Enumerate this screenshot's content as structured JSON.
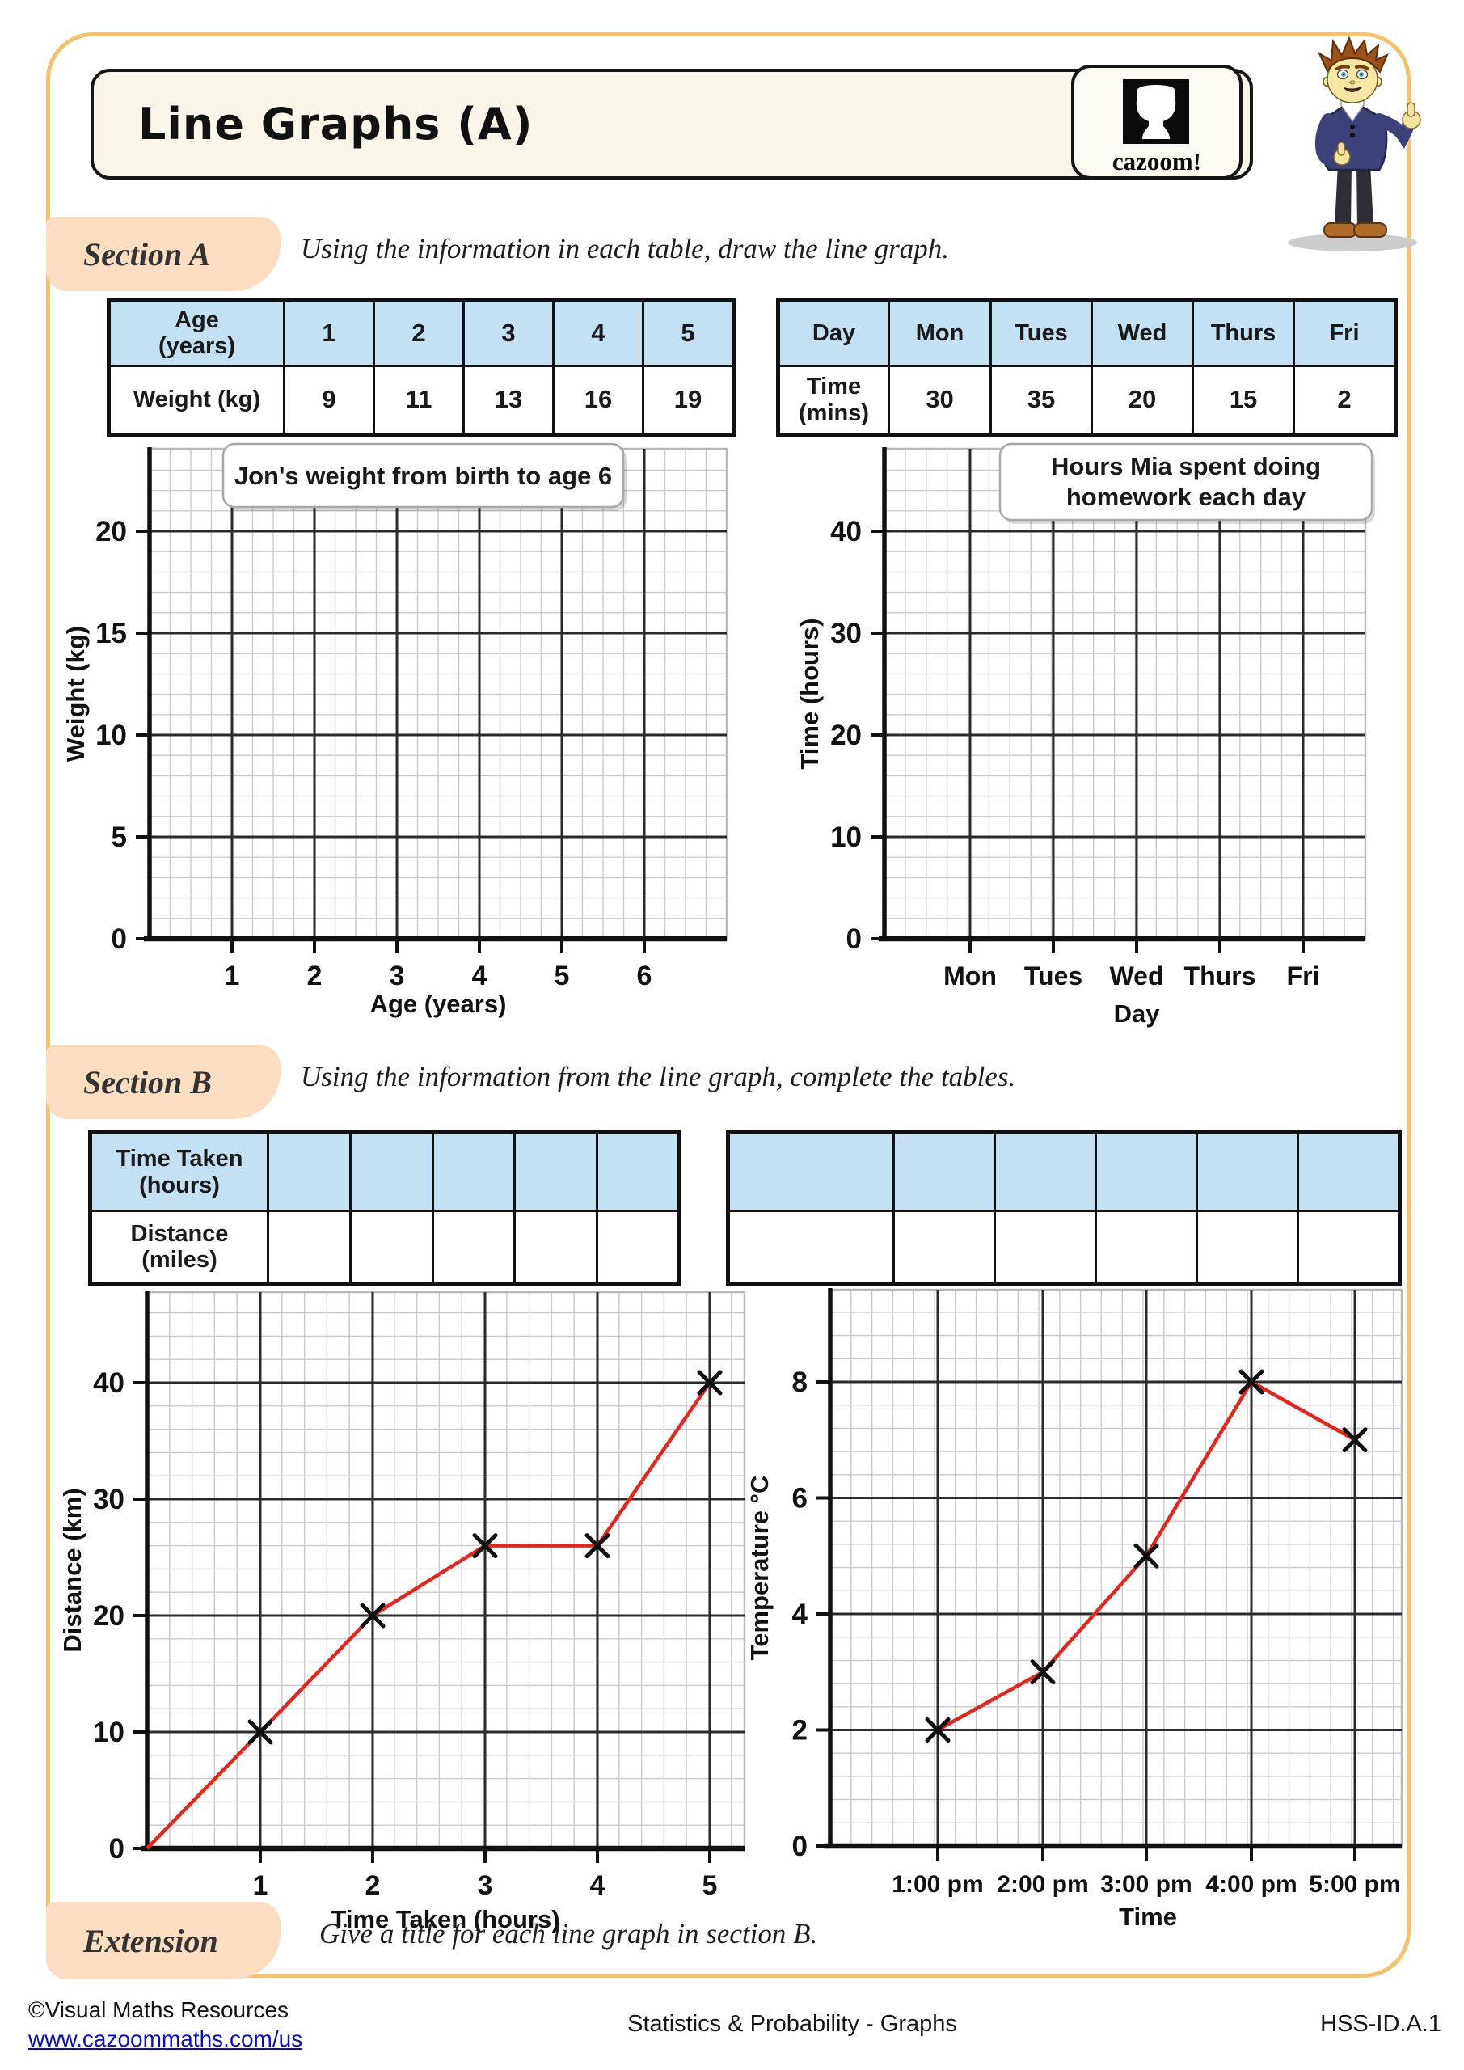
{
  "page": {
    "title": "Line Graphs (A)",
    "logo_text": "cazoom!",
    "footer": {
      "copyright": "©Visual Maths Resources",
      "link": "www.cazoommaths.com/us",
      "center": "Statistics & Probability - Graphs",
      "code": "HSS-ID.A.1"
    }
  },
  "colors": {
    "frame": "#f5c169",
    "section_label_bg": "#fbdec2",
    "table_header_bg": "#c3e1f3",
    "graph_line": "#e8251d",
    "link": "#0a0ad2"
  },
  "sections": {
    "a": {
      "label": "Section A",
      "instruction": "Using the information in each table, draw the line graph."
    },
    "b": {
      "label": "Section B",
      "instruction": "Using the information from the line graph, complete the tables."
    },
    "extension": {
      "label": "Extension",
      "instruction": "Give a title for each line graph in section B."
    }
  },
  "tables": {
    "age_weight": {
      "header": [
        "Age\n(years)",
        "1",
        "2",
        "3",
        "4",
        "5"
      ],
      "row": [
        "Weight (kg)",
        "9",
        "11",
        "13",
        "16",
        "19"
      ]
    },
    "day_time": {
      "header": [
        "Day",
        "Mon",
        "Tues",
        "Wed",
        "Thurs",
        "Fri"
      ],
      "row": [
        "Time\n(mins)",
        "30",
        "35",
        "20",
        "15",
        "2"
      ]
    },
    "time_distance": {
      "header": [
        "Time Taken\n(hours)",
        "",
        "",
        "",
        "",
        ""
      ],
      "row": [
        "Distance\n(miles)",
        "",
        "",
        "",
        "",
        ""
      ]
    },
    "blank": {
      "header": [
        "",
        "",
        "",
        "",
        "",
        ""
      ],
      "row": [
        "",
        "",
        "",
        "",
        "",
        ""
      ]
    }
  },
  "chart_data": [
    {
      "id": "jon-weight",
      "type": "line",
      "title": "Jon's weight from birth to age 6",
      "xlabel": "Age (years)",
      "ylabel": "Weight  (kg)",
      "x_ticks": [
        "1",
        "2",
        "3",
        "4",
        "5",
        "6"
      ],
      "y_ticks": [
        "0",
        "5",
        "10",
        "15",
        "20"
      ],
      "ylim": [
        0,
        24
      ],
      "grid": true,
      "empty": true,
      "series": []
    },
    {
      "id": "mia-homework",
      "type": "line",
      "title": "Hours Mia spent doing\nhomework each day",
      "xlabel": "Day",
      "ylabel": "Time  (hours)",
      "x_ticks": [
        "Mon",
        "Tues",
        "Wed",
        "Thurs",
        "Fri"
      ],
      "y_ticks": [
        "0",
        "10",
        "20",
        "30",
        "40"
      ],
      "ylim": [
        0,
        48
      ],
      "grid": true,
      "empty": true,
      "series": []
    },
    {
      "id": "distance-time",
      "type": "line",
      "title": "",
      "xlabel": "Time Taken (hours)",
      "ylabel": "Distance (km)",
      "x_ticks": [
        "1",
        "2",
        "3",
        "4",
        "5"
      ],
      "y_ticks": [
        "0",
        "10",
        "20",
        "30",
        "40"
      ],
      "ylim": [
        0,
        48
      ],
      "grid": true,
      "line_color": "#e8251d",
      "marker": "x",
      "starts_at_origin": true,
      "x": [
        1,
        2,
        3,
        4,
        5
      ],
      "y": [
        10,
        20,
        26,
        26,
        40
      ]
    },
    {
      "id": "temperature-time",
      "type": "line",
      "title": "",
      "xlabel": "Time",
      "ylabel": "Temperature  °C",
      "x_ticks": [
        "1:00 pm",
        "2:00 pm",
        "3:00 pm",
        "4:00 pm",
        "5:00 pm"
      ],
      "y_ticks": [
        "0",
        "2",
        "4",
        "6",
        "8"
      ],
      "ylim": [
        0,
        9.6
      ],
      "grid": true,
      "line_color": "#e8251d",
      "marker": "x",
      "starts_at_origin": false,
      "x": [
        1,
        2,
        3,
        4,
        5
      ],
      "y": [
        2,
        3,
        5,
        8,
        7
      ]
    }
  ]
}
